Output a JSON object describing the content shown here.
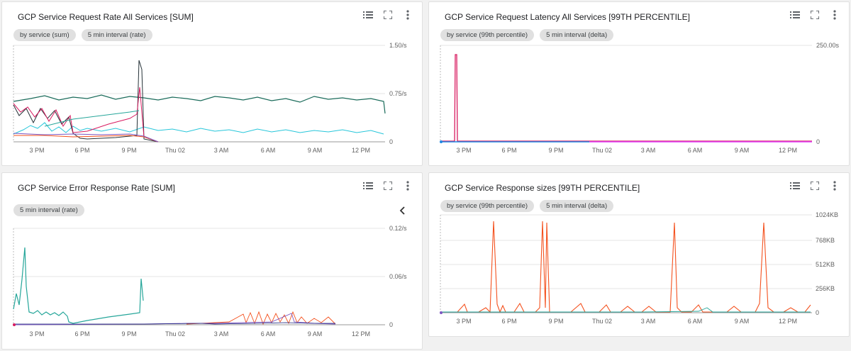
{
  "panels": [
    {
      "id": "p1",
      "title": "GCP Service Request Rate All Services [SUM]",
      "chips": [
        "by service (sum)",
        "5 min interval (rate)"
      ],
      "y_ticks": [
        "1.50/s",
        "0.75/s",
        "0"
      ],
      "x_ticks": [
        "3 PM",
        "6 PM",
        "9 PM",
        "Thu 02",
        "3 AM",
        "6 AM",
        "9 AM",
        "12 PM"
      ]
    },
    {
      "id": "p2",
      "title": "GCP Service Request Latency All Services [99TH PERCENTILE]",
      "chips": [
        "by service (99th percentile)",
        "5 min interval (delta)"
      ],
      "y_ticks": [
        "250.00s",
        "0"
      ],
      "x_ticks": [
        "3 PM",
        "6 PM",
        "9 PM",
        "Thu 02",
        "3 AM",
        "6 AM",
        "9 AM",
        "12 PM"
      ]
    },
    {
      "id": "p3",
      "title": "GCP Service Error Response Rate [SUM]",
      "chips": [
        "5 min interval (rate)"
      ],
      "y_ticks": [
        "0.12/s",
        "0.06/s",
        "0"
      ],
      "x_ticks": [
        "3 PM",
        "6 PM",
        "9 PM",
        "Thu 02",
        "3 AM",
        "6 AM",
        "9 AM",
        "12 PM"
      ]
    },
    {
      "id": "p4",
      "title": "GCP Service Response sizes [99TH PERCENTILE]",
      "chips": [
        "by service (99th percentile)",
        "5 min interval (delta)"
      ],
      "y_ticks": [
        "1024KB",
        "768KB",
        "512KB",
        "256KB",
        "0"
      ],
      "x_ticks": [
        "3 PM",
        "6 PM",
        "9 PM",
        "Thu 02",
        "3 AM",
        "6 AM",
        "9 AM",
        "12 PM"
      ]
    }
  ],
  "colors": {
    "teal_dark": "#1a6b5a",
    "cyan": "#26c6da",
    "teal": "#26a69a",
    "magenta": "#d81b60",
    "orange": "#f4511e",
    "purple": "#7e57c2",
    "blue": "#1e88e5",
    "black": "#263238"
  },
  "icons": {
    "legend": "list-icon",
    "fullscreen": "fullscreen-icon",
    "more": "more-vert-icon",
    "collapse": "chevron-left-icon"
  }
}
